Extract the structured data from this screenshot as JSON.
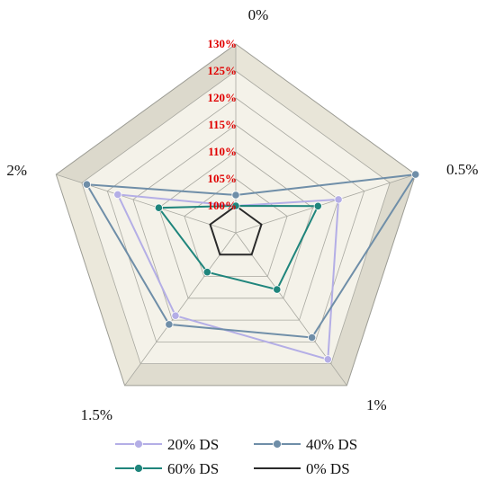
{
  "chart_data": {
    "type": "radar",
    "title": "",
    "axes": [
      "0%",
      "0.5%",
      "1%",
      "1.5%",
      "2%"
    ],
    "ticks": [
      "100%",
      "105%",
      "110%",
      "115%",
      "120%",
      "125%",
      "130%"
    ],
    "rmin": 95,
    "rmax": 130,
    "rstep": 5,
    "legend_position": "bottom",
    "series": [
      {
        "name": "20% DS",
        "color": "#b4aee6",
        "values": [
          100,
          115,
          124,
          114,
          118
        ]
      },
      {
        "name": "40% DS",
        "color": "#6f8ea8",
        "values": [
          102,
          130,
          119,
          116,
          124
        ]
      },
      {
        "name": "60% DS",
        "color": "#1f857c",
        "values": [
          100,
          111,
          108,
          104,
          110
        ]
      },
      {
        "name": "0% DS",
        "color": "#2a2a2a",
        "values": [
          100,
          100,
          100,
          100,
          100
        ]
      }
    ]
  }
}
